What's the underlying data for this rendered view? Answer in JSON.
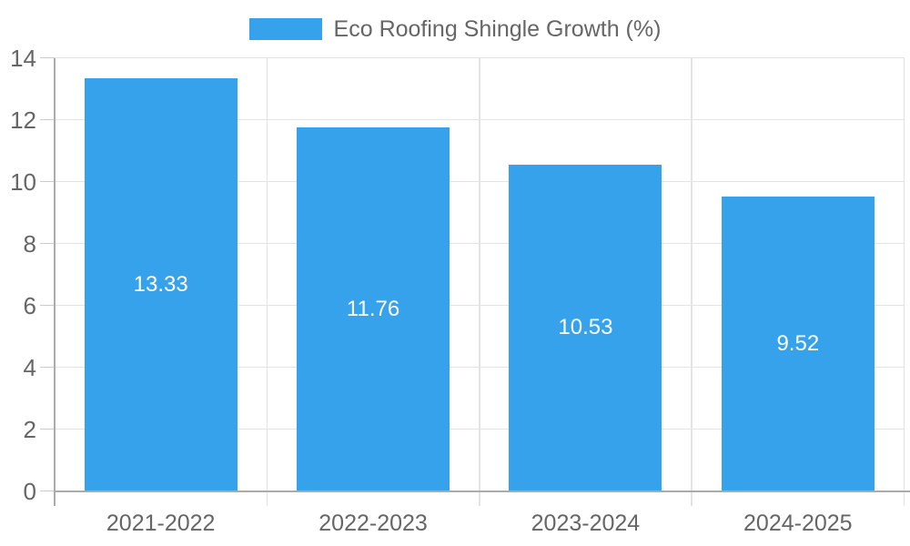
{
  "legend": {
    "label": "Eco Roofing Shingle Growth (%)"
  },
  "chart_data": {
    "type": "bar",
    "title": "Eco Roofing Shingle Growth (%)",
    "categories": [
      "2021-2022",
      "2022-2023",
      "2023-2024",
      "2024-2025"
    ],
    "values": [
      13.33,
      11.76,
      10.53,
      9.52
    ],
    "value_labels": [
      "13.33",
      "11.76",
      "10.53",
      "9.52"
    ],
    "xlabel": "",
    "ylabel": "",
    "ylim": [
      0,
      14
    ],
    "yticks": [
      0,
      2,
      4,
      6,
      8,
      10,
      12,
      14
    ],
    "grid": true,
    "legend_position": "top",
    "colors": {
      "bar": "#36A2EB",
      "grid": "#E3E3E3",
      "axis": "#ABABAB",
      "tick": "#CCCCCC",
      "tick_text": "#666666",
      "bar_label_text": "#FFFFFF",
      "background": "#FFFFFF"
    }
  }
}
